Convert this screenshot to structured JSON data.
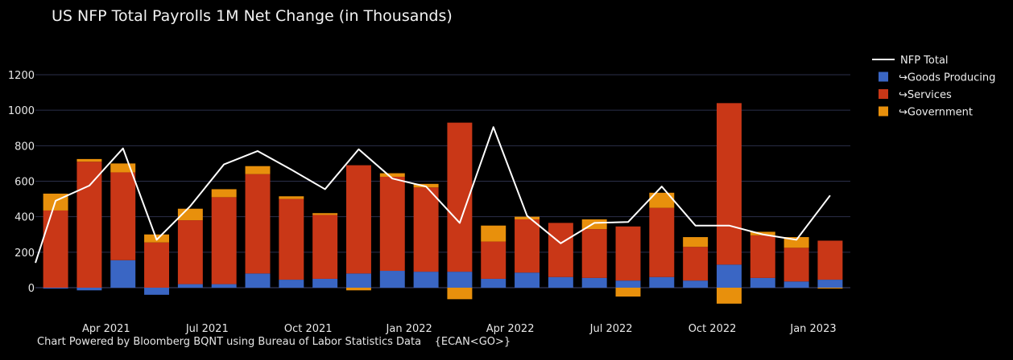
{
  "title": "US NFP Total Payrolls 1M Net Change (in Thousands)",
  "footer": {
    "source": "Chart Powered by Bloomberg BQNT using Bureau of Labor Statistics Data",
    "ticker": "{ECAN<GO>}"
  },
  "colors": {
    "background": "#000000",
    "grid": "#2b2f4a",
    "goods": "#3a66c4",
    "services": "#c93717",
    "government": "#e8900c",
    "total_line": "#ffffff"
  },
  "chart_data": {
    "type": "bar",
    "stacked": true,
    "title": "US NFP Total Payrolls 1M Net Change (in Thousands)",
    "xlabel": "",
    "ylabel": "",
    "ylim": [
      -110,
      1330
    ],
    "yticks": [
      0,
      200,
      400,
      600,
      800,
      1000,
      1200
    ],
    "xtick_labels": [
      {
        "label": "Apr 2021",
        "month": "2021-04"
      },
      {
        "label": "Jul 2021",
        "month": "2021-07"
      },
      {
        "label": "Oct 2021",
        "month": "2021-10"
      },
      {
        "label": "Jan 2022",
        "month": "2022-01"
      },
      {
        "label": "Apr 2022",
        "month": "2022-04"
      },
      {
        "label": "Jul 2022",
        "month": "2022-07"
      },
      {
        "label": "Oct 2022",
        "month": "2022-10"
      },
      {
        "label": "Jan 2023",
        "month": "2023-01"
      }
    ],
    "grid": true,
    "legend_position": "top-right",
    "categories": [
      "2021-02",
      "2021-03",
      "2021-04",
      "2021-05",
      "2021-06",
      "2021-07",
      "2021-08",
      "2021-09",
      "2021-10",
      "2021-11",
      "2021-12",
      "2022-01",
      "2022-02",
      "2022-03",
      "2022-04",
      "2022-05",
      "2022-06",
      "2022-07",
      "2022-08",
      "2022-09",
      "2022-10",
      "2022-11",
      "2022-12",
      "2023-01"
    ],
    "series": [
      {
        "name": "↪Goods Producing",
        "kind": "bar",
        "color": "#3a66c4",
        "values": [
          -5,
          -15,
          155,
          -40,
          20,
          20,
          80,
          45,
          50,
          80,
          95,
          90,
          90,
          50,
          85,
          60,
          55,
          40,
          60,
          40,
          130,
          55,
          35,
          45
        ]
      },
      {
        "name": "↪Services",
        "kind": "bar",
        "color": "#c93717",
        "values": [
          435,
          710,
          495,
          255,
          360,
          490,
          560,
          455,
          360,
          610,
          530,
          475,
          840,
          210,
          300,
          305,
          275,
          305,
          390,
          190,
          910,
          240,
          190,
          220
        ]
      },
      {
        "name": "↪Government",
        "kind": "bar",
        "color": "#e8900c",
        "values": [
          95,
          15,
          50,
          45,
          65,
          45,
          45,
          15,
          10,
          -15,
          20,
          20,
          -65,
          90,
          15,
          0,
          55,
          -50,
          85,
          55,
          -90,
          20,
          60,
          -5
        ]
      },
      {
        "name": "NFP Total",
        "kind": "line",
        "color": "#ffffff",
        "values": [
          490,
          575,
          785,
          270,
          460,
          695,
          770,
          665,
          555,
          780,
          615,
          570,
          365,
          905,
          405,
          250,
          365,
          370,
          570,
          350,
          350,
          300,
          270,
          520
        ]
      }
    ],
    "line_start": {
      "value": 140
    }
  }
}
